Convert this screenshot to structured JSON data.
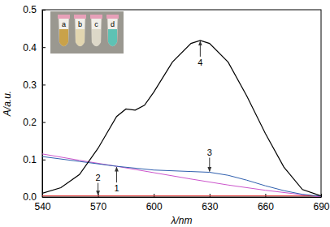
{
  "chart_data": {
    "type": "line",
    "x_label": "λ/nm",
    "y_label": "A/a.u.",
    "xlim": [
      540,
      690
    ],
    "xticks": [
      540,
      570,
      600,
      630,
      660,
      690
    ],
    "ylim": [
      0,
      0.5
    ],
    "yticks": [
      {
        "value": 0,
        "label": "0.0"
      },
      0.1,
      0.2,
      0.3,
      0.4,
      0.5
    ],
    "inset_labels": [
      "a",
      "b",
      "c",
      "d"
    ],
    "series": [
      {
        "name": "1",
        "color": "#cc55cc",
        "x": [
          540,
          560,
          580,
          600,
          620,
          640,
          660,
          680,
          690
        ],
        "values": [
          0.115,
          0.098,
          0.082,
          0.065,
          0.048,
          0.032,
          0.018,
          0.006,
          0.0
        ]
      },
      {
        "name": "2",
        "color": "#e03030",
        "x": [
          540,
          570,
          600,
          630,
          660,
          690
        ],
        "values": [
          0.003,
          0.003,
          0.003,
          0.003,
          0.003,
          0.003
        ]
      },
      {
        "name": "3",
        "color": "#2f5fae",
        "x": [
          540,
          560,
          580,
          600,
          620,
          630,
          640,
          650,
          660,
          670,
          680,
          690
        ],
        "values": [
          0.108,
          0.095,
          0.082,
          0.072,
          0.068,
          0.066,
          0.058,
          0.045,
          0.03,
          0.017,
          0.007,
          0.002
        ]
      },
      {
        "name": "4",
        "color": "#000000",
        "x": [
          540,
          550,
          560,
          570,
          580,
          585,
          590,
          595,
          600,
          610,
          620,
          625,
          630,
          640,
          650,
          660,
          670,
          680,
          690
        ],
        "values": [
          0.01,
          0.025,
          0.06,
          0.13,
          0.215,
          0.235,
          0.232,
          0.245,
          0.28,
          0.36,
          0.41,
          0.418,
          0.41,
          0.36,
          0.27,
          0.17,
          0.08,
          0.02,
          0.003
        ]
      }
    ]
  }
}
